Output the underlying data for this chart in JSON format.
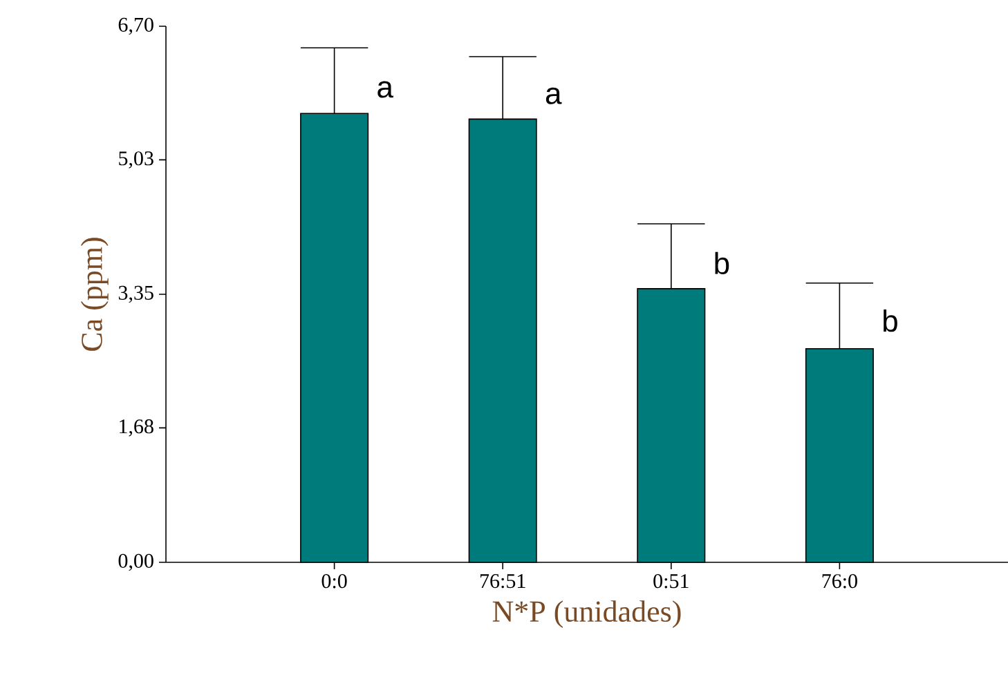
{
  "chart_data": {
    "type": "bar",
    "xlabel": "N*P (unidades)",
    "ylabel": "Ca (ppm)",
    "categories": [
      "0:0",
      "76:51",
      "0:51",
      "76:0"
    ],
    "values": [
      5.61,
      5.54,
      3.42,
      2.67
    ],
    "errors": [
      [
        5.61,
        6.43
      ],
      [
        5.54,
        6.32
      ],
      [
        3.42,
        4.23
      ],
      [
        2.67,
        3.49
      ]
    ],
    "color": "#007b7b",
    "ylim": [
      0,
      6.7
    ],
    "yticks": [
      {
        "value": 0,
        "label": "0,00"
      },
      {
        "value": 1.68,
        "label": "1,68"
      },
      {
        "value": 3.35,
        "label": "3,35"
      },
      {
        "value": 5.03,
        "label": "5,03"
      },
      {
        "value": 6.7,
        "label": "6,70"
      }
    ],
    "annotations": [
      {
        "text": "a",
        "x": "0:0",
        "y": 5.91
      },
      {
        "text": "a",
        "x": "76:51",
        "y": 5.83
      },
      {
        "text": "b",
        "x": "0:51",
        "y": 3.74
      },
      {
        "text": "b",
        "x": "76:0",
        "y": 3.02
      }
    ]
  }
}
